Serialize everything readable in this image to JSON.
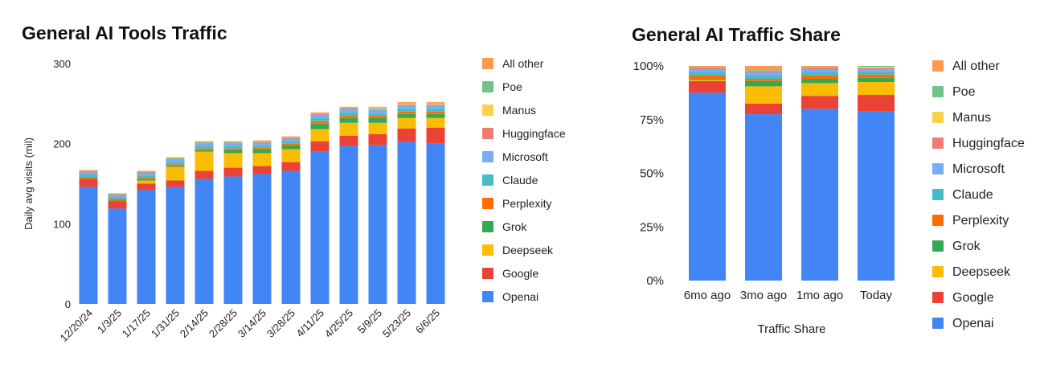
{
  "colors": {
    "Openai": "#4285f4",
    "Google": "#ea4335",
    "Deepseek": "#fbbc04",
    "Grok": "#34a853",
    "Perplexity": "#ff6d01",
    "Claude": "#46bdc6",
    "Microsoft": "#7baaf7",
    "Huggingface": "#f07b72",
    "Manus": "#fcd04f",
    "Poe": "#71c287",
    "All other": "#ff994d"
  },
  "chart_data": [
    {
      "type": "bar",
      "stacked": true,
      "title": "General AI Tools Traffic",
      "ylabel": "Daily avg visits (mil)",
      "xlabel": "",
      "ylim": [
        0,
        300
      ],
      "yticks": [
        "0",
        "100",
        "200",
        "300"
      ],
      "grid": false,
      "legend_position": "right",
      "categories": [
        "12/20/24",
        "1/3/25",
        "1/17/25",
        "1/31/25",
        "2/14/25",
        "2/28/25",
        "3/14/25",
        "3/28/25",
        "4/11/25",
        "4/25/25",
        "5/9/25",
        "5/23/25",
        "6/6/25"
      ],
      "series": [
        {
          "name": "Openai",
          "values": [
            146,
            119,
            142,
            146,
            156,
            159,
            162,
            166,
            190,
            197,
            198,
            202,
            200
          ]
        },
        {
          "name": "Google",
          "values": [
            9,
            9,
            8,
            8,
            10,
            11,
            10,
            11,
            13,
            13,
            14,
            17,
            20
          ]
        },
        {
          "name": "Deepseek",
          "values": [
            0,
            0,
            4,
            17,
            24,
            18,
            16,
            16,
            15,
            16,
            14,
            13,
            12
          ]
        },
        {
          "name": "Grok",
          "values": [
            1,
            1,
            1,
            1,
            2,
            4,
            5,
            5,
            7,
            6,
            6,
            5,
            5
          ]
        },
        {
          "name": "Perplexity",
          "values": [
            2,
            2,
            2,
            2,
            2,
            2,
            2,
            2,
            3,
            3,
            3,
            3,
            3
          ]
        },
        {
          "name": "Claude",
          "values": [
            3,
            2,
            3,
            3,
            3,
            3,
            3,
            3,
            4,
            4,
            3,
            4,
            4
          ]
        },
        {
          "name": "Microsoft",
          "values": [
            3,
            2,
            3,
            3,
            3,
            3,
            3,
            3,
            4,
            4,
            4,
            4,
            4
          ]
        },
        {
          "name": "Huggingface",
          "values": [
            1,
            1,
            1,
            1,
            1,
            1,
            1,
            1,
            1,
            1,
            1,
            1,
            1
          ]
        },
        {
          "name": "Manus",
          "values": [
            0,
            0,
            0,
            0,
            0,
            0,
            0,
            0,
            0,
            0,
            1,
            1,
            1
          ]
        },
        {
          "name": "Poe",
          "values": [
            1,
            1,
            1,
            1,
            1,
            1,
            1,
            1,
            1,
            1,
            1,
            1,
            1
          ]
        },
        {
          "name": "All other",
          "values": [
            1,
            1,
            1,
            1,
            1,
            1,
            1,
            1,
            1,
            1,
            1,
            1,
            1
          ]
        }
      ]
    },
    {
      "type": "bar",
      "stacked": true,
      "percent": true,
      "title": "General AI Traffic Share",
      "xlabel": "Traffic Share",
      "ylabel": "",
      "ylim": [
        0,
        100
      ],
      "yticks": [
        "0%",
        "25%",
        "50%",
        "75%",
        "100%"
      ],
      "grid": false,
      "legend_position": "right",
      "categories": [
        "6mo ago",
        "3mo ago",
        "1mo ago",
        "Today"
      ],
      "series": [
        {
          "name": "Openai",
          "values": [
            87.5,
            77.5,
            80,
            79
          ]
        },
        {
          "name": "Google",
          "values": [
            5.5,
            5,
            6,
            7.5
          ]
        },
        {
          "name": "Deepseek",
          "values": [
            0.5,
            8,
            6,
            6
          ]
        },
        {
          "name": "Grok",
          "values": [
            0.5,
            2.5,
            2,
            2
          ]
        },
        {
          "name": "Perplexity",
          "values": [
            1.5,
            1,
            1.5,
            1.5
          ]
        },
        {
          "name": "Claude",
          "values": [
            1.5,
            1.5,
            1.5,
            1.5
          ]
        },
        {
          "name": "Microsoft",
          "values": [
            1.5,
            1.5,
            1.5,
            1
          ]
        },
        {
          "name": "Huggingface",
          "values": [
            0.5,
            0.5,
            0.5,
            0.5
          ]
        },
        {
          "name": "Manus",
          "values": [
            0,
            0,
            0,
            0.5
          ]
        },
        {
          "name": "Poe",
          "values": [
            0.5,
            0.5,
            0.5,
            0.5
          ]
        },
        {
          "name": "All other",
          "values": [
            0.5,
            2,
            0.5,
            0
          ]
        }
      ]
    }
  ]
}
